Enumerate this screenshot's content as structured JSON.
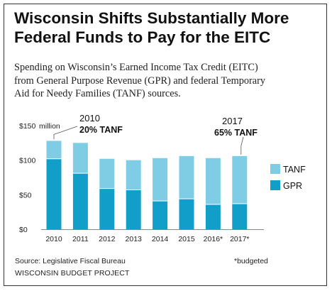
{
  "header": {
    "title_line1": "Wisconsin Shifts Substantially More",
    "title_line2": "Federal Funds to Pay for the EITC",
    "subtitle_line1": "Spending on Wisconsin’s Earned Income Tax Credit (EITC)",
    "subtitle_line2": "from General Purpose Revenue (GPR) and federal Temporary",
    "subtitle_line3": "Aid for Needy Families (TANF) sources."
  },
  "footer": {
    "source": "Source: Legislative Fiscal Bureau",
    "org": "WISCONSIN BUDGET PROJECT",
    "note": "*budgeted"
  },
  "colors": {
    "tanf": "#7fcde4",
    "gpr": "#119ec8",
    "axis": "#888888"
  },
  "chart_data": {
    "type": "bar",
    "stacked": true,
    "categories": [
      "2010",
      "2011",
      "2012",
      "2013",
      "2014",
      "2015",
      "2016*",
      "2017*"
    ],
    "series": [
      {
        "name": "GPR",
        "values": [
          102,
          81,
          59,
          57,
          41,
          44,
          36,
          37
        ]
      },
      {
        "name": "TANF",
        "values": [
          26,
          44,
          43,
          43,
          62,
          62,
          67,
          69
        ]
      }
    ],
    "yticks": [
      "$0",
      "$50",
      "$100",
      "$150"
    ],
    "ytick_values": [
      0,
      50,
      100,
      150
    ],
    "yunit_label": "million",
    "ylim": [
      0,
      150
    ],
    "grid": false,
    "legend_position": "right",
    "annotations": [
      {
        "year": "2010",
        "text": "20% TANF",
        "category": "2010"
      },
      {
        "year": "2017",
        "text": "65% TANF",
        "category": "2017*"
      }
    ]
  }
}
